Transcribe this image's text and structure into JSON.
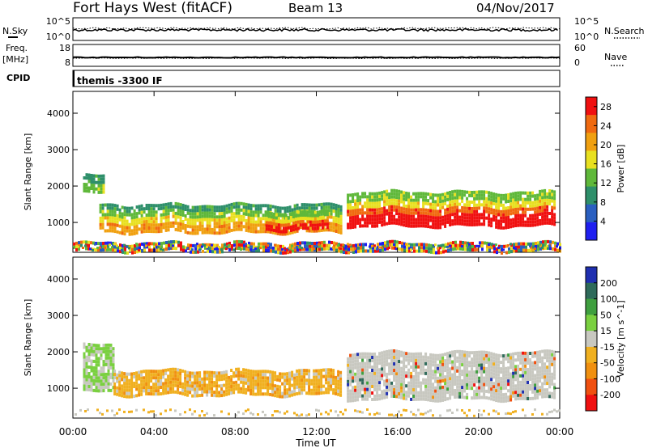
{
  "header": {
    "station": "Fort Hays West (fitACF)",
    "beam": "Beam 13",
    "date": "04/Nov/2017"
  },
  "strip_panels": {
    "nsky": {
      "label": "N.Sky",
      "ticks": [
        "10^5",
        "10^0"
      ],
      "right_label": "N.Search",
      "right_ticks": [
        "10^5",
        "10^0"
      ]
    },
    "freq": {
      "label_line1": "Freq.",
      "label_line2": "[MHz]",
      "ticks": [
        "18",
        "8"
      ],
      "right_label": "Nave",
      "right_ticks": [
        "60",
        "0"
      ]
    },
    "cpid": {
      "label": "CPID",
      "value": "themis -3300 IF"
    }
  },
  "chart_data": [
    {
      "type": "heatmap",
      "parameter": "power",
      "ylabel": "Slant Range [km]",
      "xlabel": "Time UT",
      "x_ticks": [
        "00:00",
        "04:00",
        "08:00",
        "12:00",
        "16:00",
        "20:00",
        "00:00"
      ],
      "y_ticks": [
        1000,
        2000,
        3000,
        4000
      ],
      "xlim_hours": [
        0,
        24
      ],
      "ylim_km": [
        180,
        4600
      ],
      "colorbar": {
        "label": "Power [dB]",
        "ticks": [
          4,
          8,
          12,
          16,
          20,
          24,
          28
        ],
        "range": [
          0,
          30
        ],
        "colors": [
          "#1f1ff0",
          "#2a5fc0",
          "#2e8f6a",
          "#5fb83a",
          "#e8e020",
          "#f0a010",
          "#f06a10",
          "#f01010"
        ]
      },
      "echo_bands": [
        {
          "t_start": 0.5,
          "t_end": 1.5,
          "range_low": 1850,
          "range_high": 2300,
          "level": "moderate"
        },
        {
          "t_start": 1.3,
          "t_end": 13.2,
          "range_low": 750,
          "range_high": 1500,
          "level": "moderate-strong"
        },
        {
          "t_start": 9.5,
          "t_end": 12.5,
          "range_low": 800,
          "range_high": 1300,
          "level": "strong"
        },
        {
          "t_start": 13.5,
          "t_end": 23.8,
          "range_low": 900,
          "range_high": 1850,
          "level": "strong"
        },
        {
          "t_start": 0,
          "t_end": 24,
          "range_low": 200,
          "range_high": 450,
          "level": "ground-scatter"
        }
      ]
    },
    {
      "type": "heatmap",
      "parameter": "velocity",
      "ylabel": "Slant Range [km]",
      "xlabel": "Time UT",
      "x_ticks": [
        "00:00",
        "04:00",
        "08:00",
        "12:00",
        "16:00",
        "20:00",
        "00:00"
      ],
      "y_ticks": [
        1000,
        2000,
        3000,
        4000
      ],
      "xlim_hours": [
        0,
        24
      ],
      "ylim_km": [
        180,
        4600
      ],
      "colorbar": {
        "label": "Velocity [m s^-1]",
        "ticks": [
          200,
          100,
          50,
          15,
          -15,
          -50,
          -100,
          -200
        ],
        "colors": [
          "#1f2fb0",
          "#2e6a5a",
          "#3f9f3f",
          "#7ad040",
          "#c8c8c0",
          "#f0b020",
          "#f09010",
          "#f05010",
          "#f01010"
        ]
      },
      "echo_bands": [
        {
          "t_start": 0.5,
          "t_end": 2.0,
          "range_low": 900,
          "range_high": 2200,
          "velocity_class": "50 to 100"
        },
        {
          "t_start": 2.0,
          "t_end": 13.2,
          "range_low": 800,
          "range_high": 1500,
          "velocity_class": "-15 to -50"
        },
        {
          "t_start": 13.5,
          "t_end": 23.8,
          "range_low": 700,
          "range_high": 2000,
          "velocity_class": "-15 to 15"
        }
      ]
    }
  ]
}
